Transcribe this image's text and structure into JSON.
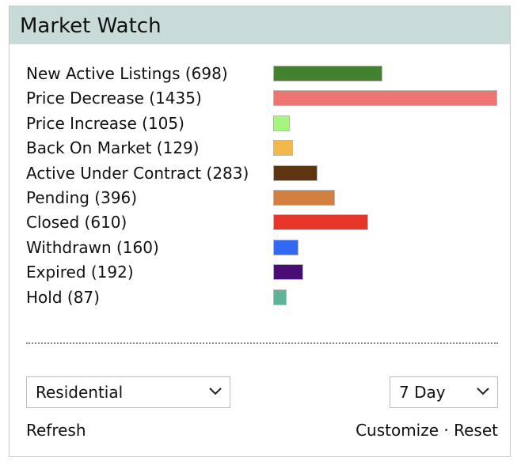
{
  "header": {
    "title": "Market Watch"
  },
  "chart_data": {
    "type": "bar",
    "categories": [
      "New Active Listings (698)",
      "Price Decrease (1435)",
      "Price Increase (105)",
      "Back On Market (129)",
      "Active Under Contract (283)",
      "Pending (396)",
      "Closed (610)",
      "Withdrawn (160)",
      "Expired (192)",
      "Hold (87)"
    ],
    "values": [
      698,
      1435,
      105,
      129,
      283,
      396,
      610,
      160,
      192,
      87
    ],
    "colors": [
      "#43802f",
      "#ee7672",
      "#a6f57f",
      "#f0b94a",
      "#5e3511",
      "#d37f40",
      "#e8352a",
      "#3369f0",
      "#4a0d75",
      "#5fb399"
    ]
  },
  "controls": {
    "property_type": "Residential",
    "period": "7 Day",
    "refresh": "Refresh",
    "customize": "Customize",
    "separator": "·",
    "reset": "Reset"
  }
}
